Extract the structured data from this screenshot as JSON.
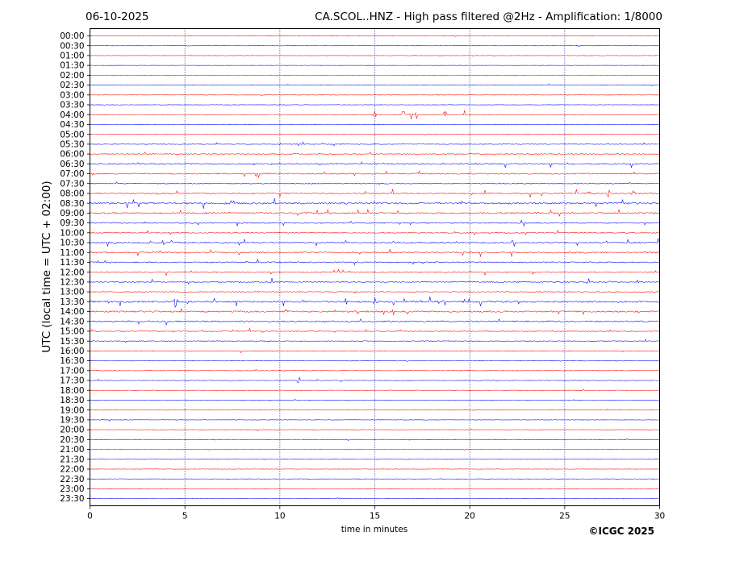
{
  "chart_data": {
    "type": "line",
    "date": "06-10-2025",
    "title": "CA.SCOL..HNZ - High pass filtered @2Hz - Amplification: 1/8000",
    "xlabel": "time in minutes",
    "ylabel": "UTC (local time = UTC + 02:00)",
    "copyright": "©ICGC 2025",
    "xlim": [
      0,
      30
    ],
    "x_ticks": [
      "0",
      "5",
      "10",
      "15",
      "20",
      "25",
      "30"
    ],
    "x_tick_values": [
      0,
      5,
      10,
      15,
      20,
      25,
      30
    ],
    "vertical_gridlines_at": [
      5,
      10,
      15,
      20,
      25
    ],
    "grid": "vertical dotted lines every 5 minutes",
    "row_labels": [
      "00:00",
      "00:30",
      "01:00",
      "01:30",
      "02:00",
      "02:30",
      "03:00",
      "03:30",
      "04:00",
      "04:30",
      "05:00",
      "05:30",
      "06:00",
      "06:30",
      "07:00",
      "07:30",
      "08:00",
      "08:30",
      "09:00",
      "09:30",
      "10:00",
      "10:30",
      "11:00",
      "11:30",
      "12:00",
      "12:30",
      "13:00",
      "13:30",
      "14:00",
      "14:30",
      "15:00",
      "15:30",
      "16:00",
      "16:30",
      "17:00",
      "17:30",
      "18:00",
      "18:30",
      "19:00",
      "19:30",
      "20:00",
      "20:30",
      "21:00",
      "21:30",
      "22:00",
      "22:30",
      "23:00",
      "23:30"
    ],
    "trace_colors": [
      "#ff0000",
      "#0000ff"
    ],
    "row_activity": [
      0.5,
      0.4,
      0.4,
      0.35,
      0.4,
      0.4,
      0.4,
      0.5,
      0.3,
      0.3,
      0.4,
      0.9,
      1.2,
      1.6,
      1.5,
      1.0,
      1.6,
      2.2,
      1.8,
      1.5,
      1.3,
      1.7,
      1.6,
      1.5,
      1.3,
      1.5,
      0.9,
      2.2,
      1.9,
      1.8,
      1.2,
      0.9,
      0.7,
      0.7,
      0.6,
      0.6,
      0.5,
      0.5,
      0.5,
      0.5,
      0.5,
      0.5,
      0.45,
      0.5,
      0.45,
      0.4,
      0.35,
      0.4
    ],
    "events": [
      {
        "row": "04:00",
        "minutes": [
          15.0,
          16.5,
          16.9,
          17.2,
          18.7,
          19.7
        ]
      },
      {
        "row": "08:00",
        "minutes": [
          26.3,
          27.3,
          28.6
        ]
      },
      {
        "row": "10:30",
        "minutes": [
          3.9,
          4.3,
          22.3
        ]
      },
      {
        "row": "13:30",
        "minutes": [
          4.5,
          13.5,
          15.0,
          19.8
        ]
      },
      {
        "row": "17:30",
        "minutes": [
          11.0
        ]
      }
    ]
  }
}
